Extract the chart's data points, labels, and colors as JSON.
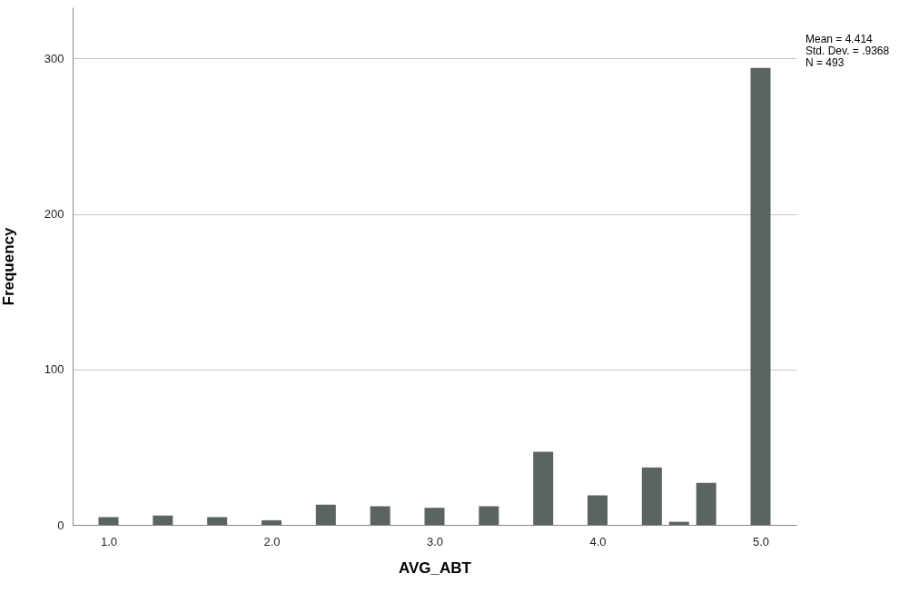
{
  "chart_data": {
    "type": "bar",
    "xlabel": "AVG_ABT",
    "ylabel": "Frequency",
    "x": [
      1.0,
      1.3333,
      1.6667,
      2.0,
      2.3333,
      2.6667,
      3.0,
      3.3333,
      3.6667,
      4.0,
      4.3333,
      4.5,
      4.6667,
      5.0
    ],
    "values": [
      5,
      6,
      5,
      3,
      13,
      12,
      11,
      12,
      47,
      19,
      37,
      2,
      27,
      294
    ],
    "color": "#5b645e",
    "xlim": [
      0.78,
      5.22
    ],
    "xticks": [
      {
        "value": 1,
        "label": "1.0"
      },
      {
        "value": 2,
        "label": "2.0"
      },
      {
        "value": 3,
        "label": "3.0"
      },
      {
        "value": 4,
        "label": "4.0"
      },
      {
        "value": 5,
        "label": "5.0"
      }
    ],
    "ylim": [
      0,
      333
    ],
    "yticks": [
      0,
      100,
      200,
      300
    ],
    "grid": "y",
    "annotations": [
      "Mean = 4.414",
      "Std. Dev. = .9368",
      "N = 493"
    ]
  }
}
